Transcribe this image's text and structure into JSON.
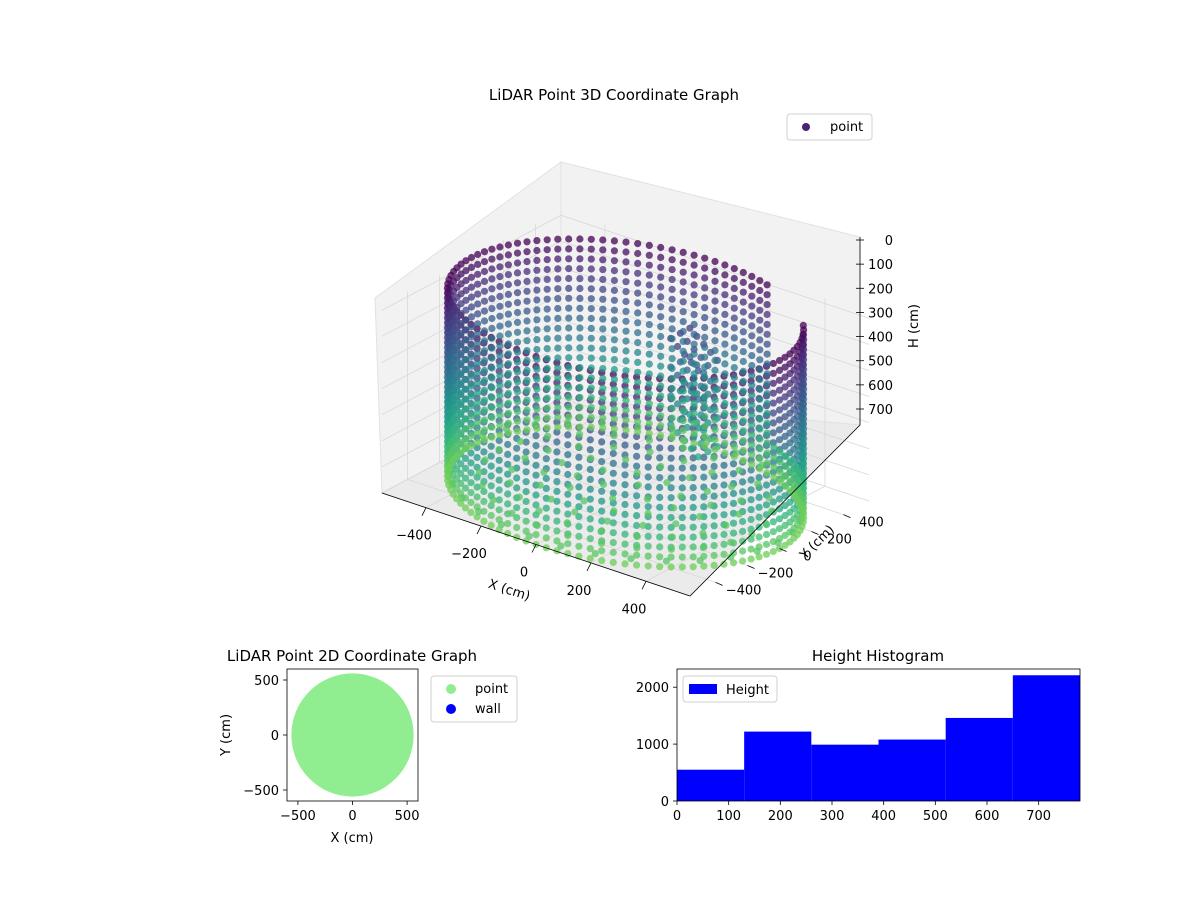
{
  "colors": {
    "point_2d": "#90ee90",
    "wall_2d": "#0000ff",
    "histogram": "#0000ff",
    "point_3d_legend": "#482475",
    "colormap": [
      "#440154",
      "#482878",
      "#3e4a89",
      "#31688e",
      "#26828e",
      "#1f9e89",
      "#35b779",
      "#6ece58"
    ]
  },
  "chart_data": [
    {
      "type": "scatter",
      "projection": "3d",
      "title": "LiDAR Point 3D Coordinate Graph",
      "xlabel": "X (cm)",
      "ylabel": "Y (cm)",
      "zlabel": "H (cm)",
      "x_ticks": [
        "−400",
        "−200",
        "0",
        "200",
        "400"
      ],
      "y_ticks": [
        "400",
        "200",
        "0",
        "−200",
        "−400"
      ],
      "z_ticks": [
        "0",
        "100",
        "200",
        "300",
        "400",
        "500",
        "600",
        "700"
      ],
      "xlim": [
        -560,
        560
      ],
      "ylim": [
        -560,
        560
      ],
      "zlim": [
        0,
        720
      ],
      "z_inverted": true,
      "legend": {
        "entries": [
          "point"
        ],
        "placement": "upper-right"
      },
      "color_by": "height",
      "cylinder_radius_cm": 560,
      "height_range_cm": [
        0,
        720
      ],
      "wall_gap_angle_deg": [
        35,
        65
      ]
    },
    {
      "type": "scatter",
      "title": "LiDAR Point 2D Coordinate Graph",
      "xlabel": "X (cm)",
      "ylabel": "Y (cm)",
      "x_ticks": [
        "−500",
        "0",
        "500"
      ],
      "y_ticks": [
        "500",
        "0",
        "−500"
      ],
      "xlim": [
        -600,
        600
      ],
      "ylim": [
        -600,
        600
      ],
      "legend": {
        "entries": [
          "point",
          "wall"
        ],
        "placement": "outside-right"
      },
      "series": [
        {
          "name": "point",
          "region": "filled-disk",
          "radius": 560
        }
      ]
    },
    {
      "type": "bar",
      "histogram": true,
      "title": "Height Histogram",
      "x_ticks": [
        "0",
        "100",
        "200",
        "300",
        "400",
        "500",
        "600",
        "700"
      ],
      "y_ticks": [
        "0",
        "1000",
        "2000"
      ],
      "xlim": [
        0,
        780
      ],
      "ylim": [
        0,
        2320
      ],
      "bin_edges": [
        0,
        130,
        260,
        390,
        520,
        650,
        780
      ],
      "values": [
        550,
        1220,
        990,
        1080,
        1460,
        2210
      ],
      "legend": {
        "entries": [
          "Height"
        ],
        "placement": "upper-left"
      }
    }
  ]
}
